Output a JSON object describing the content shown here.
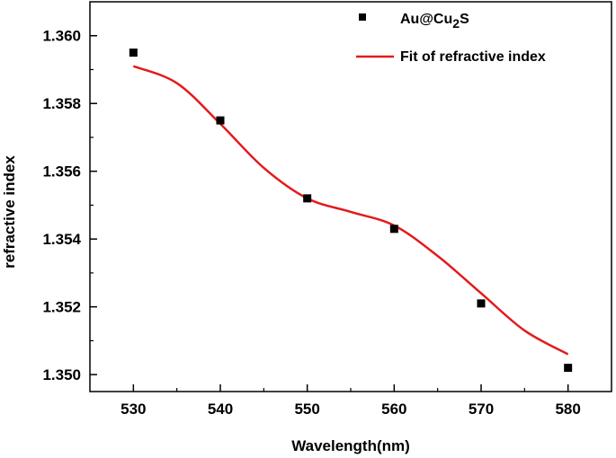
{
  "chart_data": {
    "type": "scatter",
    "title": "",
    "xlabel": "Wavelength(nm)",
    "ylabel": "refractive index",
    "xlim": [
      525,
      585
    ],
    "ylim": [
      1.3495,
      1.361
    ],
    "x_ticks": [
      530,
      540,
      550,
      560,
      570,
      580
    ],
    "x_tick_labels": [
      "530",
      "540",
      "550",
      "560",
      "570",
      "580"
    ],
    "y_ticks": [
      1.35,
      1.352,
      1.354,
      1.356,
      1.358,
      1.36
    ],
    "y_tick_labels": [
      "1.350",
      "1.352",
      "1.354",
      "1.356",
      "1.358",
      "1.360"
    ],
    "grid": false,
    "legend_position": "top-right",
    "series": [
      {
        "name": "Au@Cu2S",
        "label_main": "Au@Cu",
        "label_sub": "2",
        "label_tail": "S",
        "kind": "scatter",
        "marker": "square",
        "color": "#000000",
        "x": [
          530,
          540,
          550,
          560,
          570,
          580
        ],
        "y": [
          1.3595,
          1.3575,
          1.3552,
          1.3543,
          1.3521,
          1.3502
        ]
      },
      {
        "name": "Fit of refractive index",
        "kind": "line",
        "color": "#e31a1c",
        "x": [
          530,
          535,
          540,
          545,
          550,
          555,
          560,
          565,
          570,
          575,
          580
        ],
        "y": [
          1.3591,
          1.3586,
          1.3574,
          1.3561,
          1.3552,
          1.3548,
          1.3544,
          1.3535,
          1.3524,
          1.3513,
          1.3506
        ]
      }
    ]
  }
}
